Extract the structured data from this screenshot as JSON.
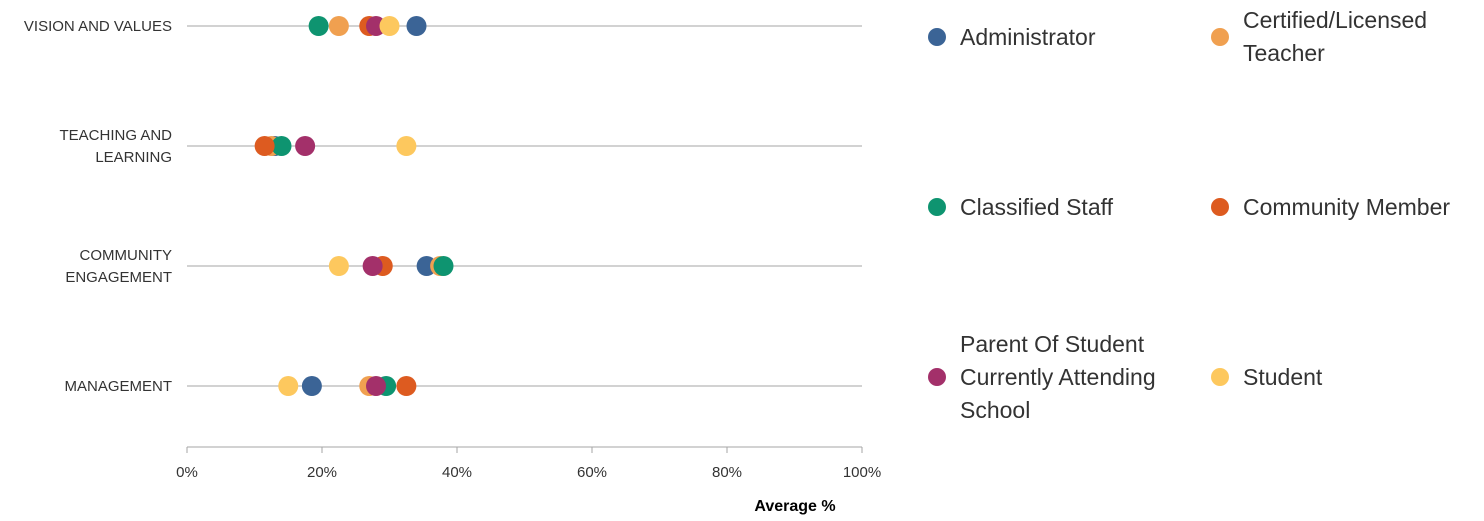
{
  "chart_data": {
    "type": "scatter",
    "title": "",
    "xlabel": "Average %",
    "ylabel": "",
    "xlim": [
      0,
      100
    ],
    "x_ticks": [
      "0%",
      "20%",
      "40%",
      "60%",
      "80%",
      "100%"
    ],
    "categories": [
      {
        "lines": [
          "VISION AND VALUES"
        ]
      },
      {
        "lines": [
          "TEACHING AND",
          "LEARNING"
        ]
      },
      {
        "lines": [
          "COMMUNITY",
          "ENGAGEMENT"
        ]
      },
      {
        "lines": [
          "MANAGEMENT"
        ]
      }
    ],
    "legend_position": "right",
    "series": [
      {
        "name": "Administrator",
        "color": "#3b6496",
        "values": [
          34,
          13,
          35.5,
          18.5
        ]
      },
      {
        "name": "Certified/Licensed Teacher",
        "color": "#f0a050",
        "values": [
          22.5,
          12.5,
          37.5,
          27
        ]
      },
      {
        "name": "Classified Staff",
        "color": "#0e9470",
        "values": [
          19.5,
          14,
          38,
          29.5
        ]
      },
      {
        "name": "Community Member",
        "color": "#dd5b20",
        "values": [
          27,
          11.5,
          29,
          32.5
        ]
      },
      {
        "name": "Parent Of Student Currently Attending School",
        "color": "#a3306a",
        "values": [
          28,
          17.5,
          27.5,
          28
        ]
      },
      {
        "name": "Student",
        "color": "#fdc85e",
        "values": [
          30,
          32.5,
          22.5,
          15
        ]
      }
    ]
  }
}
